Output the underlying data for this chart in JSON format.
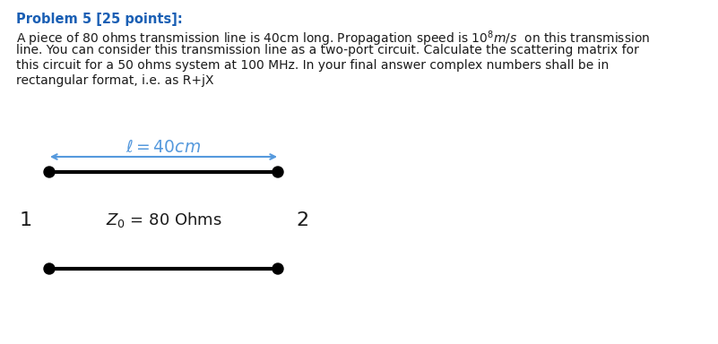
{
  "title": "Problem 5 [25 points]:",
  "title_color": "#1a5fb4",
  "body_line1": "A piece of 80 ohms transmission line is 40cm long. Propagation speed is $10^8$$m/s$  on this transmission",
  "body_line2": "line. You can consider this transmission line as a two-port circuit. Calculate the scattering matrix for",
  "body_line3": "this circuit for a 50 ohms system at 100 MHz. In your final answer complex numbers shall be in",
  "body_line4": "rectangular format, i.e. as R+jX",
  "body_color": "#1a1a1a",
  "background_color": "#ffffff",
  "line_color": "#000000",
  "arrow_color": "#5599dd",
  "label_ell": "$\\ell = 40cm$",
  "label_z0": "$Z_0$ = 80 Ohms",
  "port1_label": "1",
  "port2_label": "2",
  "font_size_title": 10.5,
  "font_size_body": 10.0,
  "font_size_diagram": 13.5,
  "font_size_port": 16,
  "font_size_z0": 13
}
